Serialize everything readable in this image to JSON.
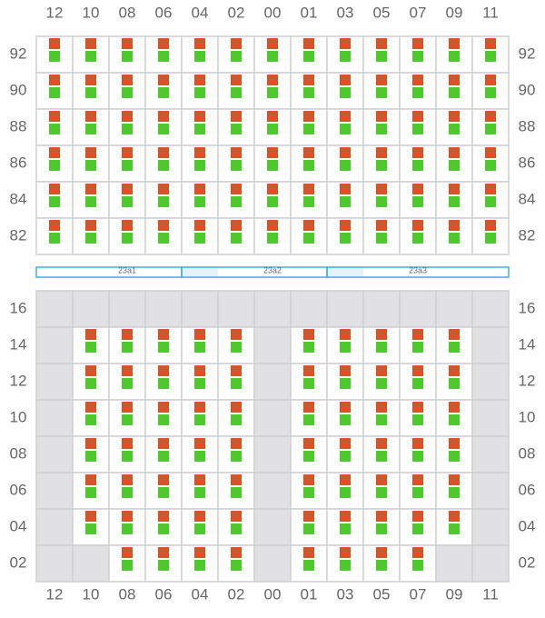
{
  "columns": [
    "12",
    "10",
    "08",
    "06",
    "04",
    "02",
    "00",
    "01",
    "03",
    "05",
    "07",
    "09",
    "11"
  ],
  "top_rows": [
    {
      "label": "92",
      "slots": [
        true,
        true,
        true,
        true,
        true,
        true,
        true,
        true,
        true,
        true,
        true,
        true,
        true
      ]
    },
    {
      "label": "90",
      "slots": [
        true,
        true,
        true,
        true,
        true,
        true,
        true,
        true,
        true,
        true,
        true,
        true,
        true
      ]
    },
    {
      "label": "88",
      "slots": [
        true,
        true,
        true,
        true,
        true,
        true,
        true,
        true,
        true,
        true,
        true,
        true,
        true
      ]
    },
    {
      "label": "86",
      "slots": [
        true,
        true,
        true,
        true,
        true,
        true,
        true,
        true,
        true,
        true,
        true,
        true,
        true
      ]
    },
    {
      "label": "84",
      "slots": [
        true,
        true,
        true,
        true,
        true,
        true,
        true,
        true,
        true,
        true,
        true,
        true,
        true
      ]
    },
    {
      "label": "82",
      "slots": [
        true,
        true,
        true,
        true,
        true,
        true,
        true,
        true,
        true,
        true,
        true,
        true,
        true
      ]
    }
  ],
  "sections": [
    "23a1",
    "23a2",
    "23a3"
  ],
  "bottom_rows": [
    {
      "label": "16",
      "slots": [
        false,
        false,
        false,
        false,
        false,
        false,
        false,
        false,
        false,
        false,
        false,
        false,
        false
      ]
    },
    {
      "label": "14",
      "slots": [
        false,
        true,
        true,
        true,
        true,
        true,
        false,
        true,
        true,
        true,
        true,
        true,
        false
      ]
    },
    {
      "label": "12",
      "slots": [
        false,
        true,
        true,
        true,
        true,
        true,
        false,
        true,
        true,
        true,
        true,
        true,
        false
      ]
    },
    {
      "label": "10",
      "slots": [
        false,
        true,
        true,
        true,
        true,
        true,
        false,
        true,
        true,
        true,
        true,
        true,
        false
      ]
    },
    {
      "label": "08",
      "slots": [
        false,
        true,
        true,
        true,
        true,
        true,
        false,
        true,
        true,
        true,
        true,
        true,
        false
      ]
    },
    {
      "label": "06",
      "slots": [
        false,
        true,
        true,
        true,
        true,
        true,
        false,
        true,
        true,
        true,
        true,
        true,
        false
      ]
    },
    {
      "label": "04",
      "slots": [
        false,
        true,
        true,
        true,
        true,
        true,
        false,
        true,
        true,
        true,
        true,
        true,
        false
      ]
    },
    {
      "label": "02",
      "slots": [
        false,
        false,
        true,
        true,
        true,
        true,
        false,
        true,
        true,
        true,
        true,
        false,
        false
      ]
    }
  ]
}
